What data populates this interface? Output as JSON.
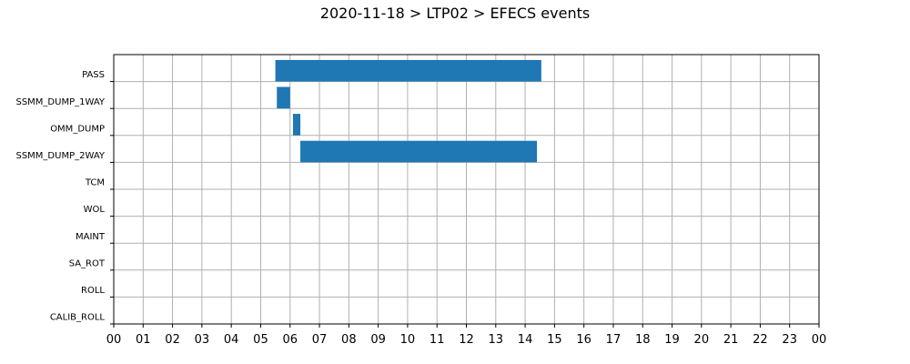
{
  "chart_data": {
    "type": "bar",
    "orientation": "horizontal",
    "title": "2020-11-18 > LTP02 > EFECS events",
    "xlabel": "",
    "ylabel": "",
    "grid": true,
    "bar_color": "#1f77b4",
    "xlim": [
      0,
      24
    ],
    "x_ticks": [
      "00",
      "01",
      "02",
      "03",
      "04",
      "05",
      "06",
      "07",
      "08",
      "09",
      "10",
      "11",
      "12",
      "13",
      "14",
      "15",
      "16",
      "17",
      "18",
      "19",
      "20",
      "21",
      "22",
      "23",
      "00"
    ],
    "categories": [
      "PASS",
      "SSMM_DUMP_1WAY",
      "OMM_DUMP",
      "SSMM_DUMP_2WAY",
      "TCM",
      "WOL",
      "MAINT",
      "SA_ROT",
      "ROLL",
      "CALIB_ROLL"
    ],
    "events": [
      {
        "category": "PASS",
        "start": 5.5,
        "end": 14.55
      },
      {
        "category": "SSMM_DUMP_1WAY",
        "start": 5.55,
        "end": 6.0
      },
      {
        "category": "OMM_DUMP",
        "start": 6.1,
        "end": 6.35
      },
      {
        "category": "SSMM_DUMP_2WAY",
        "start": 6.35,
        "end": 14.4
      }
    ]
  }
}
